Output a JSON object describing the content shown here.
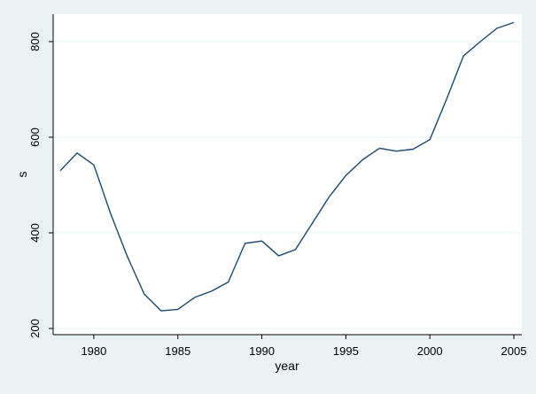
{
  "colors": {
    "background": "#eaf2f3",
    "plot_background": "#ffffff",
    "grid": "#eaf2f3",
    "line": "#1a476f",
    "axis": "#000000"
  },
  "chart_data": {
    "type": "line",
    "title": "",
    "xlabel": "year",
    "ylabel": "s",
    "xlim": [
      1978,
      2005
    ],
    "ylim": [
      200,
      840
    ],
    "x_ticks": [
      1980,
      1985,
      1990,
      1995,
      2000,
      2005
    ],
    "y_ticks": [
      200,
      400,
      600,
      800
    ],
    "x_tick_labels": [
      "1980",
      "1985",
      "1990",
      "1995",
      "2000",
      "2005"
    ],
    "y_tick_labels": [
      "200",
      "400",
      "600",
      "800"
    ],
    "grid": true,
    "legend": "none",
    "series": [
      {
        "x": [
          1978,
          1979,
          1980,
          1981,
          1982,
          1983,
          1984,
          1985,
          1986,
          1987,
          1988,
          1989,
          1990,
          1991,
          1992,
          1993,
          1994,
          1995,
          1996,
          1997,
          1998,
          1999,
          2000,
          2001,
          2002,
          2003,
          2004,
          2005
        ],
        "values": [
          530,
          567,
          542,
          440,
          350,
          272,
          237,
          240,
          265,
          278,
          297,
          378,
          383,
          352,
          365,
          420,
          475,
          520,
          553,
          577,
          571,
          575,
          595,
          680,
          770,
          800,
          828,
          840
        ]
      }
    ]
  }
}
